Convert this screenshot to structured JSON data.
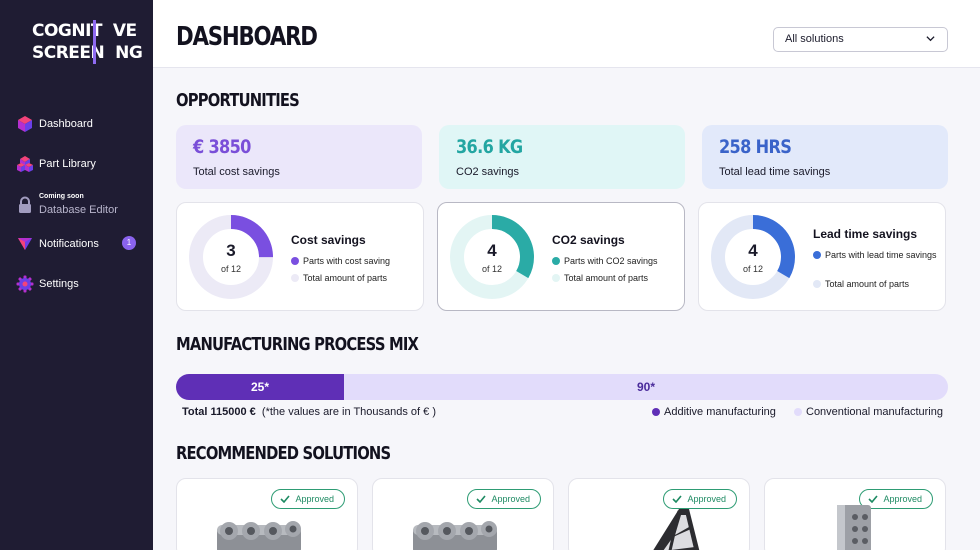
{
  "app": {
    "logo_line1": "COGNIT",
    "logo_line1b": "VE",
    "logo_line2": "SCREEN",
    "logo_line2b": "NG"
  },
  "sidebar": {
    "items": [
      {
        "label": "Dashboard",
        "icon": "cube-icon"
      },
      {
        "label": "Part Library",
        "icon": "cubes-icon"
      },
      {
        "soon": "Coming soon",
        "label": "Database Editor",
        "icon": "lock-icon"
      },
      {
        "label": "Notifications",
        "icon": "bell-icon",
        "badge": "1"
      },
      {
        "label": "Settings",
        "icon": "gear-icon"
      }
    ]
  },
  "header": {
    "title": "DASHBOARD",
    "filter_value": "All solutions"
  },
  "opportunities": {
    "title": "OPPORTUNITIES",
    "stats": [
      {
        "value": "€ 3850",
        "label": "Total cost savings",
        "color": "#7a4fd8",
        "bg": "#ebe7fa"
      },
      {
        "value": "36.6 KG",
        "label": "CO2 savings",
        "color": "#23a6a2",
        "bg": "#e0f6f6"
      },
      {
        "value": "258 HRS",
        "label": "Total lead time savings",
        "color": "#3a63c9",
        "bg": "#e2e9fa"
      }
    ],
    "donuts": [
      {
        "num": "3",
        "of": "of 12",
        "fraction": 0.25,
        "title": "Cost savings",
        "legend1": "Parts with cost saving",
        "legend2": "Total amount of parts",
        "color": "#7a4fe0",
        "track": "#eceaf6"
      },
      {
        "num": "4",
        "of": "of 12",
        "fraction": 0.3333,
        "title": "CO2 savings",
        "legend1": "Parts with CO2 savings",
        "legend2": "Total amount of parts",
        "color": "#2aaba6",
        "track": "#e3f5f4"
      },
      {
        "num": "4",
        "of": "of 12",
        "fraction": 0.3333,
        "title": "Lead time savings",
        "legend1": "Parts with lead time savings",
        "legend2": "Total amount of parts",
        "color": "#3a6ed8",
        "track": "#e2e8f6"
      }
    ]
  },
  "mix": {
    "title": "MANUFACTURING PROCESS MIX",
    "additive_label": "25*",
    "conventional_label": "90*",
    "additive_value": 25,
    "conventional_value": 90,
    "total_bold": "Total 115000 €",
    "total_note": "(*the values are in Thousands of € )",
    "legend_additive": "Additive manufacturing",
    "legend_conventional": "Conventional manufacturing",
    "color_additive": "#5f2fb6",
    "color_conventional": "#e2dcfb"
  },
  "solutions": {
    "title": "RECOMMENDED SOLUTIONS",
    "cards": [
      {
        "status": "Approved",
        "part": "manifold-part-icon"
      },
      {
        "status": "Approved",
        "part": "manifold-part-icon"
      },
      {
        "status": "Approved",
        "part": "lattice-bracket-part-icon"
      },
      {
        "status": "Approved",
        "part": "perforated-plate-part-icon"
      }
    ]
  }
}
